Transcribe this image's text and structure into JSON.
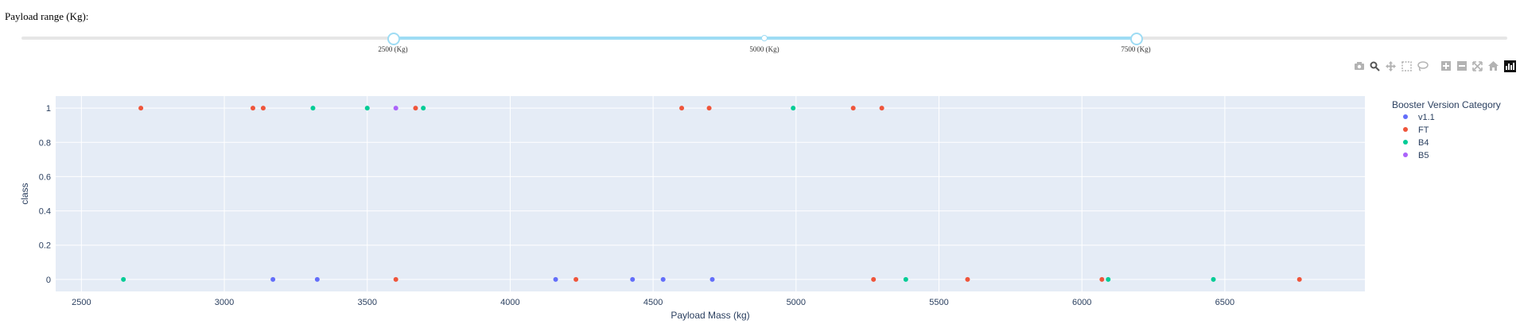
{
  "slider": {
    "label": "Payload range (Kg):",
    "min": 0,
    "max": 10000,
    "selected": [
      2500,
      7500
    ],
    "marks": [
      {
        "value": 2500,
        "label": "2500 (Kg)"
      },
      {
        "value": 5000,
        "label": "5000 (Kg)"
      },
      {
        "value": 7500,
        "label": "7500 (Kg)"
      }
    ],
    "color": "#9edcf4"
  },
  "modebar": [
    "camera-icon",
    "zoom-icon",
    "pan-icon",
    "box-select-icon",
    "lasso-icon",
    "zoom-in-icon",
    "zoom-out-icon",
    "autoscale-icon",
    "reset-axes-icon",
    "plotly-logo-icon"
  ],
  "chart_data": {
    "type": "scatter",
    "title": "",
    "xlabel": "Payload Mass (kg)",
    "ylabel": "class",
    "xlim": [
      2410,
      6990
    ],
    "ylim": [
      -0.07,
      1.07
    ],
    "x_ticks": [
      2500,
      3000,
      3500,
      4000,
      4500,
      5000,
      5500,
      6000,
      6500
    ],
    "y_ticks": [
      0,
      0.2,
      0.4,
      0.6,
      0.8,
      1
    ],
    "y_tick_labels": [
      "0",
      "0.2",
      "0.4",
      "0.6",
      "0.8",
      "1"
    ],
    "grid": true,
    "plot_background": "#e5ecf6",
    "legend": {
      "title": "Booster Version Category",
      "placement": "right"
    },
    "series": [
      {
        "name": "v1.1",
        "color": "#636efa",
        "points": [
          [
            3170,
            0
          ],
          [
            3325,
            0
          ],
          [
            4159,
            0
          ],
          [
            4428,
            0
          ],
          [
            4535,
            0
          ],
          [
            4707,
            0
          ]
        ]
      },
      {
        "name": "FT",
        "color": "#ef553b",
        "points": [
          [
            2708,
            1
          ],
          [
            3100,
            1
          ],
          [
            3136,
            1
          ],
          [
            3669,
            1
          ],
          [
            4600,
            1
          ],
          [
            4696,
            1
          ],
          [
            5200,
            1
          ],
          [
            5300,
            1
          ],
          [
            3600,
            0
          ],
          [
            4230,
            0
          ],
          [
            5271,
            0
          ],
          [
            5600,
            0
          ],
          [
            6070,
            0
          ],
          [
            6761,
            0
          ]
        ]
      },
      {
        "name": "B4",
        "color": "#00cc96",
        "points": [
          [
            3310,
            1
          ],
          [
            3500,
            1
          ],
          [
            3696,
            1
          ],
          [
            4990,
            1
          ],
          [
            2647,
            0
          ],
          [
            5384,
            0
          ],
          [
            6092,
            0
          ],
          [
            6460,
            0
          ]
        ]
      },
      {
        "name": "B5",
        "color": "#ab63fa",
        "points": [
          [
            3600,
            1
          ]
        ]
      }
    ]
  }
}
